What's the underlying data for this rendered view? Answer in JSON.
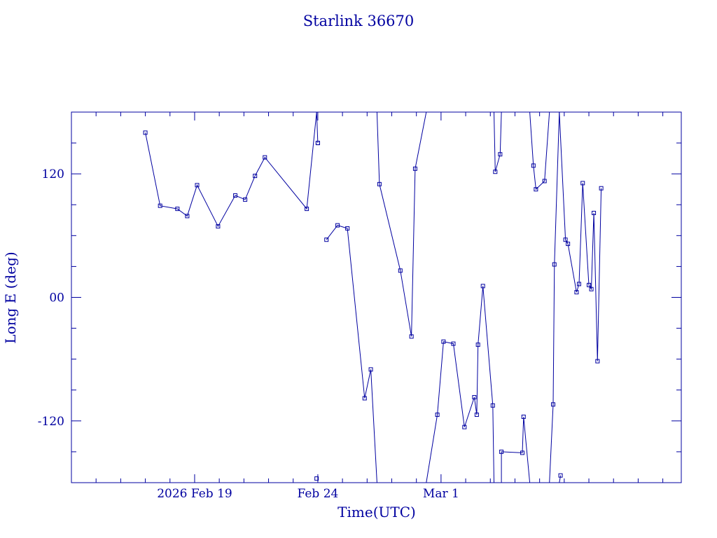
{
  "chart_data": {
    "type": "scatter",
    "title": "Starlink 36670",
    "xlabel": "Time(UTC)",
    "ylabel": "Long E (deg)",
    "x_unit": "days (2026 Feb 15 = 0)",
    "xlim": [
      15.0,
      39.75
    ],
    "ylim": [
      -180,
      180
    ],
    "x_ticks": [
      {
        "value": 20.0,
        "label": "2026 Feb 19"
      },
      {
        "value": 25.0,
        "label": "Feb 24"
      },
      {
        "value": 30.0,
        "label": "Mar  1"
      }
    ],
    "y_ticks": [
      {
        "value": 120,
        "label": "120"
      },
      {
        "value": 0,
        "label": "00"
      },
      {
        "value": -120,
        "label": "-120"
      }
    ],
    "grid": false,
    "line_color": "#0000a0",
    "segments": [
      [
        [
          18.0,
          160.0
        ],
        [
          18.6,
          89.0
        ],
        [
          19.3,
          86.0
        ],
        [
          19.7,
          79.0
        ],
        [
          20.1,
          109.0
        ],
        [
          20.95,
          69.0
        ],
        [
          21.65,
          99.0
        ],
        [
          22.05,
          95.0
        ],
        [
          22.45,
          118.0
        ],
        [
          22.85,
          136.0
        ],
        [
          24.55,
          86.0
        ],
        [
          24.95,
          180.0
        ]
      ],
      [
        [
          24.95,
          180.0
        ],
        [
          25.0,
          150.0
        ]
      ],
      [
        [
          24.95,
          -176.0
        ]
      ],
      [
        [
          25.0,
          150.0
        ]
      ],
      [
        [
          25.35,
          56.0
        ],
        [
          25.8,
          70.0
        ],
        [
          26.2,
          67.0
        ],
        [
          26.9,
          -98.0
        ],
        [
          27.15,
          -70.0
        ],
        [
          27.4,
          -180.0
        ]
      ],
      [
        [
          27.4,
          180.0
        ],
        [
          27.5,
          110.0
        ],
        [
          28.35,
          26.0
        ],
        [
          28.8,
          -38.0
        ],
        [
          28.95,
          125.0
        ],
        [
          29.4,
          180.0
        ]
      ],
      [
        [
          29.4,
          -180.0
        ],
        [
          29.85,
          -114.0
        ],
        [
          30.1,
          -43.0
        ],
        [
          30.5,
          -45.0
        ],
        [
          30.95,
          -126.0
        ],
        [
          31.35,
          -97.0
        ],
        [
          31.45,
          -114.0
        ],
        [
          31.5,
          -46.0
        ],
        [
          31.7,
          11.0
        ],
        [
          32.1,
          -105.0
        ],
        [
          32.15,
          -180.0
        ]
      ],
      [
        [
          32.15,
          180.0
        ],
        [
          32.2,
          122.0
        ],
        [
          32.4,
          139.0
        ],
        [
          32.45,
          180.0
        ]
      ],
      [
        [
          32.45,
          -180.0
        ],
        [
          32.45,
          -150.0
        ],
        [
          33.3,
          -151.0
        ],
        [
          33.35,
          -116.0
        ],
        [
          33.6,
          -180.0
        ]
      ],
      [
        [
          33.6,
          180.0
        ],
        [
          33.75,
          128.0
        ],
        [
          33.85,
          105.0
        ],
        [
          34.2,
          113.0
        ],
        [
          34.4,
          180.0
        ]
      ],
      [
        [
          34.4,
          -180.0
        ],
        [
          34.55,
          -104.0
        ],
        [
          34.6,
          32.0
        ],
        [
          34.8,
          180.0
        ]
      ],
      [
        [
          34.8,
          -180.0
        ],
        [
          34.85,
          -173.0
        ]
      ],
      [
        [
          34.8,
          180.0
        ],
        [
          35.05,
          56.0
        ],
        [
          35.15,
          52.0
        ],
        [
          35.5,
          5.0
        ],
        [
          35.6,
          13.0
        ],
        [
          35.75,
          111.0
        ],
        [
          36.0,
          12.0
        ],
        [
          36.1,
          8.0
        ],
        [
          36.2,
          82.0
        ],
        [
          36.35,
          -62.0
        ],
        [
          36.5,
          106.0
        ]
      ]
    ]
  }
}
